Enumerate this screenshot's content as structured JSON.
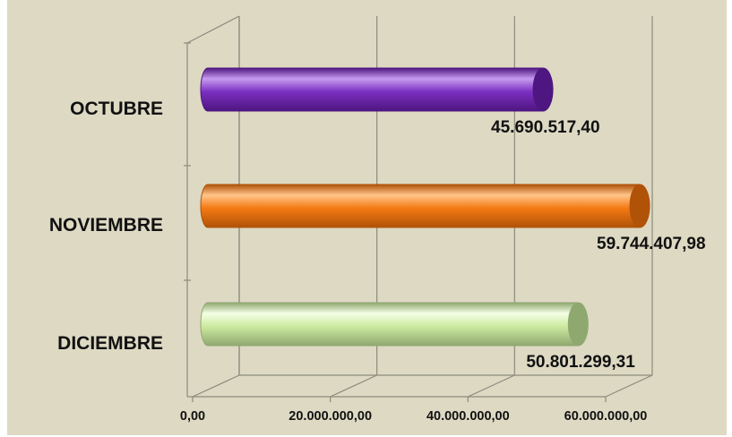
{
  "chart_data": {
    "type": "bar",
    "orientation": "horizontal",
    "style": "3d-cylinder",
    "categories": [
      "OCTUBRE",
      "NOVIEMBRE",
      "DICIEMBRE"
    ],
    "values": [
      45690517.4,
      59744407.98,
      50801299.31
    ],
    "value_labels": [
      "45.690.517,40",
      "59.744.407,98",
      "50.801.299,31"
    ],
    "bar_colors": [
      "#7a2fc0",
      "#f47a14",
      "#cdeaa0"
    ],
    "bar_shades": [
      "#4e1680",
      "#b05208",
      "#8fa870"
    ],
    "bar_highlights": [
      "#c79bf0",
      "#ffc58a",
      "#f4ffe6"
    ],
    "xlim": [
      0,
      60000000
    ],
    "x_ticks": [
      0,
      20000000,
      40000000,
      60000000
    ],
    "x_tick_labels": [
      "0,00",
      "20.000.000,00",
      "40.000.000,00",
      "60.000.000,00"
    ],
    "grid": true,
    "legend": "none",
    "title": "",
    "xlabel": "",
    "ylabel": ""
  }
}
